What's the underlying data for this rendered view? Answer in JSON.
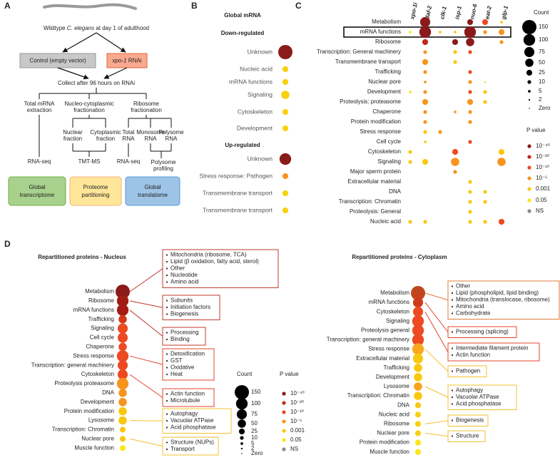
{
  "panel_labels": [
    "A",
    "B",
    "C",
    "D"
  ],
  "panel_a": {
    "title_parts": [
      "Wildtype ",
      "C. elegans",
      " at day 1 of adulthood"
    ],
    "control": "Control (empty vector)",
    "rnai": [
      "xpo-1",
      " RNAi"
    ],
    "collect": "Collect after 96 hours on RNAi",
    "methods": [
      [
        "Total mRNA",
        "extraction"
      ],
      [
        "Nucleo-cytoplasmic",
        "fractionation"
      ],
      [
        "Ribosome",
        "fractionation"
      ]
    ],
    "fractions": [
      [
        "Nuclear",
        "fraction"
      ],
      [
        "Cytoplasmic",
        "fraction"
      ],
      [
        "Total",
        "RNA"
      ],
      [
        "Monosome",
        "RNA"
      ],
      [
        "Polysome",
        "RNA"
      ]
    ],
    "assays": [
      "RNA-seq",
      "TMT-MS",
      "RNA-seq"
    ],
    "profiling": [
      "Polysome",
      "profiling"
    ],
    "outputs": [
      {
        "lines": [
          "Global",
          "transcriptome"
        ],
        "fill": "#a9d18e",
        "stroke": "#70ad47"
      },
      {
        "lines": [
          "Proteome",
          "partitioning"
        ],
        "fill": "#ffe699",
        "stroke": "#f4b183"
      },
      {
        "lines": [
          "Global",
          "translatome"
        ],
        "fill": "#9dc3e6",
        "stroke": "#5b9bd5"
      }
    ]
  },
  "panel_b": {
    "title": "Global mRNA",
    "groups": [
      {
        "title": "Down-regulated",
        "rows": [
          {
            "label": "Unknown",
            "count": 150,
            "color": "#8b1a1a"
          },
          {
            "label": "Nucleic acid",
            "count": 25,
            "color": "#f9d00e"
          },
          {
            "label": "mRNA functions",
            "count": 25,
            "color": "#f9d00e"
          },
          {
            "label": "Signaling",
            "count": 50,
            "color": "#f9d00e"
          },
          {
            "label": "Cytoskeleton",
            "count": 25,
            "color": "#f9d00e"
          },
          {
            "label": "Development",
            "count": 25,
            "color": "#f9d00e"
          }
        ]
      },
      {
        "title": "Up-regulated",
        "rows": [
          {
            "label": "Unknown",
            "count": 100,
            "color": "#8b1a1a"
          },
          {
            "label": "Stress response: Pathogen",
            "count": 25,
            "color": "#f7941d"
          },
          {
            "label": "Transmembrane transport",
            "count": 25,
            "color": "#f9d00e"
          },
          {
            "label": "Transmembrane transport",
            "count": 25,
            "color": "#f9d00e"
          }
        ]
      }
    ]
  },
  "panel_c": {
    "columns": [
      "xpo-1i",
      "daf-2",
      "clk-1",
      "isp-1",
      "nuo-6",
      "eat-2",
      "glp-1"
    ],
    "highlight_row": 1,
    "rows": [
      {
        "label": "Metabolism",
        "counts": [
          null,
          75,
          null,
          null,
          25,
          25,
          5
        ],
        "colors": [
          null,
          "#8b1a1a",
          null,
          null,
          "#8b1a1a",
          "#ee4a22",
          "#f9c80e"
        ]
      },
      {
        "label": "mRNA functions",
        "counts": [
          5,
          100,
          5,
          5,
          100,
          10,
          25
        ],
        "colors": [
          "#fbe61a",
          "#8b1a1a",
          "#f9c80e",
          "#f9c80e",
          "#8b1a1a",
          "#f7941d",
          "#f7941d"
        ]
      },
      {
        "label": "Ribosome",
        "counts": [
          null,
          25,
          null,
          25,
          50,
          null,
          10
        ],
        "colors": [
          null,
          "#c0281c",
          null,
          "#8b1a1a",
          "#8b1a1a",
          null,
          "#f7941d"
        ]
      },
      {
        "label": "Transcription: General machinery",
        "counts": [
          null,
          10,
          null,
          10,
          10,
          null,
          null
        ],
        "colors": [
          null,
          "#f7941d",
          null,
          "#f9c80e",
          "#ee4a22",
          null,
          null
        ]
      },
      {
        "label": "Transmembrane transport",
        "counts": [
          null,
          25,
          null,
          10,
          null,
          null,
          null
        ],
        "colors": [
          null,
          "#f7941d",
          null,
          "#f9c80e",
          null,
          null,
          null
        ]
      },
      {
        "label": "Trafficking",
        "counts": [
          null,
          10,
          null,
          null,
          10,
          null,
          null
        ],
        "colors": [
          null,
          "#f7941d",
          null,
          null,
          "#ee4a22",
          null,
          null
        ]
      },
      {
        "label": "Nuclear pore",
        "counts": [
          null,
          5,
          null,
          null,
          10,
          2,
          null
        ],
        "colors": [
          null,
          "#f7941d",
          null,
          null,
          "#f7941d",
          "#f9c80e",
          null
        ]
      },
      {
        "label": "Development",
        "counts": [
          5,
          10,
          null,
          null,
          10,
          10,
          null
        ],
        "colors": [
          "#fbe61a",
          "#f7941d",
          null,
          null,
          "#ee4a22",
          "#f9c80e",
          null
        ]
      },
      {
        "label": "Proteolysis: proteasome",
        "counts": [
          null,
          25,
          null,
          null,
          25,
          10,
          null
        ],
        "colors": [
          null,
          "#f7941d",
          null,
          null,
          "#f7941d",
          "#f9c80e",
          null
        ]
      },
      {
        "label": "Chaperone",
        "counts": [
          null,
          10,
          null,
          5,
          10,
          null,
          null
        ],
        "colors": [
          null,
          "#f7941d",
          null,
          "#f7941d",
          "#f7941d",
          null,
          null
        ]
      },
      {
        "label": "Protein modification",
        "counts": [
          null,
          10,
          null,
          null,
          10,
          null,
          null
        ],
        "colors": [
          null,
          "#f7941d",
          null,
          null,
          "#f7941d",
          null,
          null
        ]
      },
      {
        "label": "Stress response",
        "counts": [
          null,
          10,
          10,
          null,
          null,
          null,
          null
        ],
        "colors": [
          null,
          "#f9c80e",
          "#f7941d",
          null,
          null,
          null,
          null
        ]
      },
      {
        "label": "Cell cycle",
        "counts": [
          null,
          5,
          null,
          null,
          10,
          null,
          null
        ],
        "colors": [
          null,
          "#f9c80e",
          null,
          null,
          "#ee4a22",
          null,
          null
        ]
      },
      {
        "label": "Cytoskeleton",
        "counts": [
          10,
          null,
          null,
          25,
          null,
          null,
          25
        ],
        "colors": [
          "#f9c80e",
          null,
          null,
          "#ee4a22",
          null,
          null,
          "#f9c80e"
        ]
      },
      {
        "label": "Signaling",
        "counts": [
          10,
          25,
          null,
          50,
          null,
          null,
          50
        ],
        "colors": [
          "#f9c80e",
          "#f9c80e",
          null,
          "#f7941d",
          null,
          null,
          "#f7941d"
        ]
      },
      {
        "label": "Major sperm protein",
        "counts": [
          null,
          null,
          null,
          10,
          null,
          null,
          null
        ],
        "colors": [
          null,
          null,
          null,
          "#f7941d",
          null,
          null,
          null
        ]
      },
      {
        "label": "Extracellular material",
        "counts": [
          null,
          null,
          null,
          null,
          10,
          null,
          null
        ],
        "colors": [
          null,
          null,
          null,
          null,
          "#f9c80e",
          null,
          null
        ]
      },
      {
        "label": "DNA",
        "counts": [
          null,
          null,
          null,
          null,
          10,
          10,
          null
        ],
        "colors": [
          null,
          null,
          null,
          null,
          "#f9c80e",
          "#f9c80e",
          null
        ]
      },
      {
        "label": "Transcription: Chromatin",
        "counts": [
          null,
          null,
          null,
          null,
          10,
          10,
          null
        ],
        "colors": [
          null,
          null,
          null,
          null,
          "#f9c80e",
          "#f9c80e",
          null
        ]
      },
      {
        "label": "Proteolysis: General",
        "counts": [
          null,
          null,
          null,
          null,
          10,
          null,
          null
        ],
        "colors": [
          null,
          null,
          null,
          null,
          "#f9c80e",
          null,
          null
        ]
      },
      {
        "label": "Nucleic acid",
        "counts": [
          10,
          10,
          null,
          null,
          10,
          10,
          25
        ],
        "colors": [
          "#f9c80e",
          "#f9c80e",
          null,
          null,
          "#f9c80e",
          "#f9c80e",
          "#ee4a22"
        ]
      }
    ],
    "legend": {
      "count_title": "Count",
      "counts": [
        150,
        100,
        75,
        50,
        25,
        10,
        5,
        2,
        {
          "value": 0,
          "label": "Zero"
        }
      ],
      "p_title": "P value",
      "p_levels": [
        {
          "label": "10⁻⁴⁰",
          "color": "#8b1a1a"
        },
        {
          "label": "10⁻²⁰",
          "color": "#c0281c"
        },
        {
          "label": "10⁻¹⁰",
          "color": "#ee4a22"
        },
        {
          "label": "10⁻⁵",
          "color": "#f7941d"
        },
        {
          "label": "0.001",
          "color": "#f9c80e"
        },
        {
          "label": "0.05",
          "color": "#fbe61a"
        },
        {
          "label": "NS",
          "color": "#888888"
        }
      ]
    }
  },
  "panel_d": {
    "nucleus": {
      "title": "Repartitioned proteins - Nucleus",
      "rows": [
        {
          "label": "Metabolism",
          "count": 150,
          "color": "#8b1a1a"
        },
        {
          "label": "Ribosome",
          "count": 100,
          "color": "#a01c14"
        },
        {
          "label": "mRNA functions",
          "count": 100,
          "color": "#a51c14"
        },
        {
          "label": "Trafficking",
          "count": 50,
          "color": "#d03a1a"
        },
        {
          "label": "Signaling",
          "count": 75,
          "color": "#ee4a22"
        },
        {
          "label": "Cell cycle",
          "count": 75,
          "color": "#ee4a22"
        },
        {
          "label": "Chaperone",
          "count": 50,
          "color": "#ee4a22"
        },
        {
          "label": "Stress response",
          "count": 100,
          "color": "#ee4a22"
        },
        {
          "label": "Transcription: general machinery",
          "count": 75,
          "color": "#ee4a22"
        },
        {
          "label": "Cytoskeleton",
          "count": 75,
          "color": "#ee4a22"
        },
        {
          "label": "Proteolysis proteasome",
          "count": 100,
          "color": "#f7941d"
        },
        {
          "label": "DNA",
          "count": 50,
          "color": "#f7941d"
        },
        {
          "label": "Development",
          "count": 50,
          "color": "#f7941d"
        },
        {
          "label": "Protein modification",
          "count": 50,
          "color": "#f9c80e"
        },
        {
          "label": "Lysosome",
          "count": 50,
          "color": "#f9c80e"
        },
        {
          "label": "Transcription: Chromatin",
          "count": 25,
          "color": "#f9c80e"
        },
        {
          "label": "Nuclear pore",
          "count": 25,
          "color": "#f9c80e"
        },
        {
          "label": "Muscle function",
          "count": 25,
          "color": "#fbe61a"
        }
      ],
      "boxes": [
        {
          "row": 0,
          "color": "#c0392b",
          "items": [
            "Mitochondria (ribosome, TCA)",
            "Lipid (β oxidation, fatty acid, sterol)",
            "Other",
            "Nucleotide",
            "Amino acid"
          ]
        },
        {
          "row": 1,
          "color": "#c0392b",
          "items": [
            "Subunits",
            "Initiation factors",
            "Biogenesis"
          ]
        },
        {
          "row": 2,
          "color": "#c0392b",
          "items": [
            "Processing",
            "Binding"
          ]
        },
        {
          "row": 7,
          "color": "#e0452a",
          "items": [
            "Detoxification",
            "GST",
            "Oxidative",
            "Heat"
          ]
        },
        {
          "row": 9,
          "color": "#e0452a",
          "items": [
            "Actin function",
            "Microtubule"
          ]
        },
        {
          "row": 14,
          "color": "#f2c12e",
          "items": [
            "Autophagy",
            "Vacuolar ATPase",
            "Acid phosphatase"
          ]
        },
        {
          "row": 16,
          "color": "#f2c12e",
          "items": [
            "Structure (NUPs)",
            "Transport"
          ]
        }
      ]
    },
    "cytoplasm": {
      "title": "Repartitioned proteins - Cytoplasm",
      "rows": [
        {
          "label": "Metabolism",
          "count": 150,
          "color": "#c0451e"
        },
        {
          "label": "mRNA functions",
          "count": 75,
          "color": "#d03a1a"
        },
        {
          "label": "Cytoskeleton",
          "count": 75,
          "color": "#ee4a22"
        },
        {
          "label": "Signaling",
          "count": 100,
          "color": "#ee4a22"
        },
        {
          "label": "Proteolysis general",
          "count": 100,
          "color": "#ee4a22"
        },
        {
          "label": "Transcription: general machinery",
          "count": 100,
          "color": "#ee4a22"
        },
        {
          "label": "Stress response",
          "count": 100,
          "color": "#f9a81d"
        },
        {
          "label": "Extracellular material",
          "count": 75,
          "color": "#f9c80e"
        },
        {
          "label": "Trafficking",
          "count": 50,
          "color": "#f9c80e"
        },
        {
          "label": "Development",
          "count": 50,
          "color": "#f9c80e"
        },
        {
          "label": "Lysosome",
          "count": 50,
          "color": "#f7a21d"
        },
        {
          "label": "Transcription: Chromatin",
          "count": 50,
          "color": "#f9c80e"
        },
        {
          "label": "DNA",
          "count": 25,
          "color": "#f9c80e"
        },
        {
          "label": "Nucleic acid",
          "count": 25,
          "color": "#f9d00e"
        },
        {
          "label": "Ribosome",
          "count": 25,
          "color": "#f9d00e"
        },
        {
          "label": "Nuclear pore",
          "count": 25,
          "color": "#f9d00e"
        },
        {
          "label": "Protein modification",
          "count": 25,
          "color": "#fbe61a"
        },
        {
          "label": "Muscle function",
          "count": 25,
          "color": "#fbe61a"
        }
      ],
      "boxes": [
        {
          "row": 0,
          "color": "#e07b39",
          "items": [
            "Other",
            "Lipid (phospholipid, lipid binding)",
            "Mitochondria (translocase, ribosome)",
            "Amino acid",
            "Carbohydrate"
          ]
        },
        {
          "row": 1,
          "color": "#e0452a",
          "items": [
            "Processing (splicing)"
          ]
        },
        {
          "row": 2,
          "color": "#e0452a",
          "items": [
            "Intermediate filament protein",
            "Actin function"
          ]
        },
        {
          "row": 6,
          "color": "#f2c12e",
          "items": [
            "Pathogen"
          ]
        },
        {
          "row": 10,
          "color": "#f2c12e",
          "items": [
            "Autophagy",
            "Vacuolar ATPase",
            "Acid phosphatase"
          ]
        },
        {
          "row": 14,
          "color": "#f2c12e",
          "items": [
            "Biogenesis"
          ]
        },
        {
          "row": 15,
          "color": "#f2c12e",
          "items": [
            "Structure"
          ]
        }
      ]
    },
    "legend": {
      "count_title": "Count",
      "counts": [
        150,
        100,
        75,
        50,
        25,
        10,
        5,
        2,
        {
          "value": 0,
          "label": "Zero"
        }
      ],
      "p_title": "P value",
      "p_levels": [
        {
          "label": "10⁻⁴⁰",
          "color": "#8b1a1a"
        },
        {
          "label": "10⁻²⁰",
          "color": "#c0281c"
        },
        {
          "label": "10⁻¹⁰",
          "color": "#ee4a22"
        },
        {
          "label": "10⁻⁵",
          "color": "#f7941d"
        },
        {
          "label": "0.001",
          "color": "#f9c80e"
        },
        {
          "label": "0.05",
          "color": "#fbe61a"
        },
        {
          "label": "NS",
          "color": "#888888"
        }
      ]
    }
  }
}
